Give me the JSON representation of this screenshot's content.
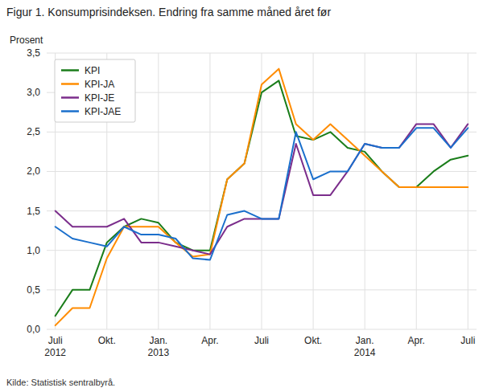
{
  "chart_data": {
    "type": "line",
    "title": "Figur 1. Konsumprisindeksen. Endring fra samme måned året før",
    "y_label": "Prosent",
    "source": "Kilde: Statistisk sentralbyrå.",
    "categories": [
      "Juli\n2012",
      null,
      null,
      "Okt.",
      null,
      null,
      "Jan.\n2013",
      null,
      null,
      "Apr.",
      null,
      null,
      "Juli",
      null,
      null,
      "Okt.",
      null,
      null,
      "Jan.\n2014",
      null,
      null,
      "Apr.",
      null,
      null,
      "Juli"
    ],
    "series": [
      {
        "name": "KPI",
        "color": "#1a7d1a",
        "values": [
          0.17,
          0.5,
          0.5,
          1.1,
          1.3,
          1.4,
          1.35,
          1.1,
          1.0,
          1.0,
          1.9,
          2.1,
          3.0,
          3.15,
          2.45,
          2.4,
          2.5,
          2.3,
          2.25,
          2.0,
          1.8,
          1.8,
          2.0,
          2.15,
          2.2
        ]
      },
      {
        "name": "KPI-JA",
        "color": "#ff8c00",
        "values": [
          0.05,
          0.27,
          0.27,
          0.9,
          1.3,
          1.3,
          1.3,
          1.1,
          0.92,
          0.95,
          1.9,
          2.1,
          3.1,
          3.3,
          2.6,
          2.4,
          2.6,
          2.4,
          2.2,
          2.0,
          1.8,
          1.8,
          1.8,
          1.8,
          1.8
        ]
      },
      {
        "name": "KPI-JE",
        "color": "#7b2d8b",
        "values": [
          1.5,
          1.3,
          1.3,
          1.3,
          1.4,
          1.1,
          1.1,
          1.05,
          1.0,
          0.95,
          1.3,
          1.4,
          1.4,
          1.4,
          2.35,
          1.7,
          1.7,
          2.0,
          2.35,
          2.3,
          2.3,
          2.6,
          2.6,
          2.3,
          2.6
        ]
      },
      {
        "name": "KPI-JAE",
        "color": "#1a6fcc",
        "values": [
          1.3,
          1.15,
          1.1,
          1.05,
          1.3,
          1.2,
          1.2,
          1.15,
          0.9,
          0.88,
          1.45,
          1.5,
          1.4,
          1.4,
          2.5,
          1.9,
          2.0,
          2.0,
          2.35,
          2.3,
          2.3,
          2.55,
          2.55,
          2.3,
          2.55
        ]
      }
    ],
    "ylim": [
      0.0,
      3.5
    ],
    "yticks": [
      {
        "value": 0.0,
        "label": "0,0"
      },
      {
        "value": 0.5,
        "label": "0,5"
      },
      {
        "value": 1.0,
        "label": "1,0"
      },
      {
        "value": 1.5,
        "label": "1,5"
      },
      {
        "value": 2.0,
        "label": "2,0"
      },
      {
        "value": 2.5,
        "label": "2,5"
      },
      {
        "value": 3.0,
        "label": "3,0"
      },
      {
        "value": 3.5,
        "label": "3,5"
      }
    ],
    "grid": true,
    "legend": "upper-left"
  }
}
